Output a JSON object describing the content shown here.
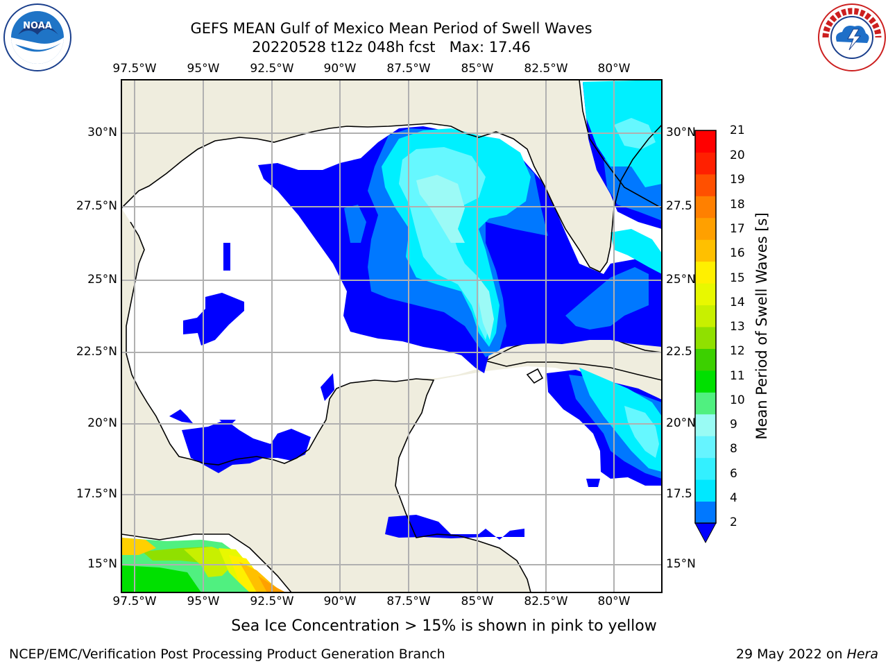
{
  "title_line1": "GEFS MEAN Gulf of Mexico Mean Period of Swell Waves",
  "title_line2": "20220528 t12z 048h fcst   Max: 17.46",
  "lon_labels": [
    "97.5°W",
    "95°W",
    "92.5°W",
    "90°W",
    "87.5°W",
    "85°W",
    "82.5°W",
    "80°W"
  ],
  "lat_labels": [
    "30°N",
    "27.5°N",
    "25°N",
    "22.5°N",
    "20°N",
    "17.5°N",
    "15°N"
  ],
  "right_lat_labels": [
    "30°N",
    "27.5",
    "25°N",
    "22.5",
    "20°N",
    "17.5",
    "15°N"
  ],
  "colorbar": {
    "label": "Mean Period of Swell Waves [s]",
    "ticks": [
      "2",
      "4",
      "6",
      "8",
      "9",
      "10",
      "11",
      "12",
      "13",
      "14",
      "15",
      "16",
      "17",
      "18",
      "19",
      "20",
      "21"
    ],
    "colors": [
      "#0078ff",
      "#00e8ff",
      "#33f0ff",
      "#66f4ff",
      "#99fbf4",
      "#50f080",
      "#00e000",
      "#3cd000",
      "#90e000",
      "#c8f000",
      "#e8f800",
      "#fff000",
      "#ffc000",
      "#ffa000",
      "#ff8000",
      "#ff5000",
      "#ff2000",
      "#ff0000"
    ],
    "extend_color": "#0000ff"
  },
  "footer_note": "Sea Ice Concentration > 15% is shown in pink to yellow",
  "credit_left": "NCEP/EMC/Verification Post Processing Product Generation Branch",
  "credit_right_prefix": "29 May 2022 on ",
  "credit_right_emph": "Hera",
  "logos": {
    "left_icon": "noaa-logo-icon",
    "left_text": "NOAA",
    "right_icon": "nws-logo-icon",
    "right_text": "NATIONAL WEATHER SERVICE"
  }
}
